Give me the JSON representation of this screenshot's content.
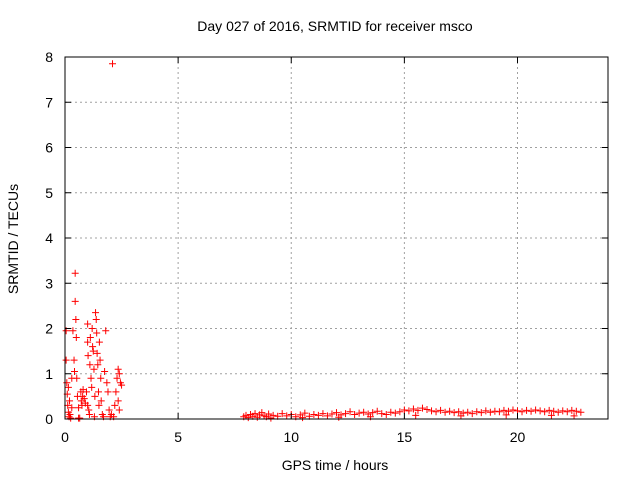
{
  "chart_data": {
    "type": "scatter",
    "title": "Day 027 of 2016, SRMTID for receiver msco",
    "xlabel": "GPS time / hours",
    "ylabel": "SRMTID / TECUs",
    "xlim": [
      0,
      24
    ],
    "ylim": [
      0,
      8
    ],
    "xticks": [
      0,
      5,
      10,
      15,
      20
    ],
    "yticks": [
      0,
      1,
      2,
      3,
      4,
      5,
      6,
      7,
      8
    ],
    "grid": true,
    "marker": "+",
    "color": "#ff0000",
    "points": [
      [
        0.05,
        1.95
      ],
      [
        0.05,
        1.3
      ],
      [
        0.08,
        0.8
      ],
      [
        0.1,
        0.55
      ],
      [
        0.12,
        0.3
      ],
      [
        0.15,
        0.15
      ],
      [
        0.18,
        0.05
      ],
      [
        0.2,
        0.4
      ],
      [
        0.22,
        0.1
      ],
      [
        0.25,
        0.02
      ],
      [
        0.3,
        0.25
      ],
      [
        0.35,
        1.95
      ],
      [
        0.4,
        1.3
      ],
      [
        0.42,
        1.05
      ],
      [
        0.45,
        3.22
      ],
      [
        0.45,
        2.6
      ],
      [
        0.48,
        2.2
      ],
      [
        0.5,
        1.8
      ],
      [
        0.52,
        0.9
      ],
      [
        0.55,
        0.5
      ],
      [
        0.6,
        0.02
      ],
      [
        0.65,
        0.02
      ],
      [
        0.7,
        0.6
      ],
      [
        0.72,
        0.4
      ],
      [
        0.75,
        0.3
      ],
      [
        0.78,
        0.5
      ],
      [
        0.8,
        0.65
      ],
      [
        0.85,
        0.45
      ],
      [
        0.9,
        0.35
      ],
      [
        0.95,
        0.6
      ],
      [
        1.0,
        2.1
      ],
      [
        1.0,
        1.7
      ],
      [
        1.02,
        1.4
      ],
      [
        1.05,
        0.2
      ],
      [
        1.08,
        0.1
      ],
      [
        1.1,
        1.2
      ],
      [
        1.12,
        1.8
      ],
      [
        1.15,
        0.9
      ],
      [
        1.18,
        0.7
      ],
      [
        1.2,
        2.0
      ],
      [
        1.22,
        1.6
      ],
      [
        1.25,
        1.5
      ],
      [
        1.28,
        1.1
      ],
      [
        1.3,
        0.05
      ],
      [
        1.32,
        0.5
      ],
      [
        1.35,
        2.35
      ],
      [
        1.38,
        2.2
      ],
      [
        1.4,
        1.9
      ],
      [
        1.42,
        1.45
      ],
      [
        1.45,
        1.2
      ],
      [
        1.48,
        0.6
      ],
      [
        1.5,
        0.3
      ],
      [
        1.52,
        1.7
      ],
      [
        1.55,
        1.3
      ],
      [
        1.58,
        0.9
      ],
      [
        1.6,
        0.4
      ],
      [
        1.65,
        0.1
      ],
      [
        1.7,
        0.05
      ],
      [
        1.75,
        1.05
      ],
      [
        1.8,
        1.95
      ],
      [
        1.85,
        0.8
      ],
      [
        1.9,
        0.6
      ],
      [
        1.95,
        0.2
      ],
      [
        2.0,
        0.05
      ],
      [
        2.05,
        0.1
      ],
      [
        2.1,
        7.85
      ],
      [
        2.15,
        0.05
      ],
      [
        2.2,
        0.3
      ],
      [
        2.25,
        0.6
      ],
      [
        2.3,
        0.9
      ],
      [
        2.35,
        1.1
      ],
      [
        2.4,
        1.0
      ],
      [
        2.45,
        0.8
      ],
      [
        2.5,
        0.75
      ],
      [
        2.35,
        0.4
      ],
      [
        2.4,
        0.2
      ],
      [
        0.3,
        0.9
      ],
      [
        0.15,
        0.7
      ],
      [
        0.6,
        0.25
      ],
      [
        1.0,
        0.3
      ],
      [
        7.9,
        0.05
      ],
      [
        8.0,
        0.08
      ],
      [
        8.1,
        0.03
      ],
      [
        8.2,
        0.1
      ],
      [
        8.3,
        0.06
      ],
      [
        8.4,
        0.12
      ],
      [
        8.5,
        0.04
      ],
      [
        8.6,
        0.09
      ],
      [
        8.7,
        0.14
      ],
      [
        8.8,
        0.07
      ],
      [
        8.9,
        0.05
      ],
      [
        9.0,
        0.11
      ],
      [
        9.2,
        0.08
      ],
      [
        9.4,
        0.06
      ],
      [
        9.6,
        0.12
      ],
      [
        9.8,
        0.07
      ],
      [
        10.0,
        0.1
      ],
      [
        10.2,
        0.05
      ],
      [
        10.4,
        0.09
      ],
      [
        10.6,
        0.13
      ],
      [
        10.8,
        0.06
      ],
      [
        11.0,
        0.1
      ],
      [
        11.2,
        0.08
      ],
      [
        11.4,
        0.12
      ],
      [
        11.6,
        0.07
      ],
      [
        11.8,
        0.11
      ],
      [
        12.0,
        0.14
      ],
      [
        12.2,
        0.09
      ],
      [
        12.4,
        0.12
      ],
      [
        12.6,
        0.16
      ],
      [
        12.8,
        0.1
      ],
      [
        13.0,
        0.13
      ],
      [
        13.2,
        0.15
      ],
      [
        13.4,
        0.11
      ],
      [
        13.6,
        0.14
      ],
      [
        13.8,
        0.17
      ],
      [
        14.0,
        0.12
      ],
      [
        14.2,
        0.1
      ],
      [
        14.4,
        0.15
      ],
      [
        14.6,
        0.13
      ],
      [
        14.8,
        0.16
      ],
      [
        15.0,
        0.2
      ],
      [
        15.2,
        0.18
      ],
      [
        15.4,
        0.22
      ],
      [
        15.6,
        0.19
      ],
      [
        15.8,
        0.24
      ],
      [
        16.0,
        0.21
      ],
      [
        16.2,
        0.18
      ],
      [
        16.4,
        0.16
      ],
      [
        16.6,
        0.19
      ],
      [
        16.8,
        0.15
      ],
      [
        17.0,
        0.17
      ],
      [
        17.2,
        0.14
      ],
      [
        17.4,
        0.16
      ],
      [
        17.6,
        0.13
      ],
      [
        17.8,
        0.15
      ],
      [
        18.0,
        0.12
      ],
      [
        18.2,
        0.16
      ],
      [
        18.4,
        0.14
      ],
      [
        18.6,
        0.18
      ],
      [
        18.8,
        0.15
      ],
      [
        19.0,
        0.17
      ],
      [
        19.2,
        0.16
      ],
      [
        19.4,
        0.19
      ],
      [
        19.6,
        0.17
      ],
      [
        19.8,
        0.2
      ],
      [
        20.0,
        0.18
      ],
      [
        20.2,
        0.16
      ],
      [
        20.4,
        0.19
      ],
      [
        20.6,
        0.17
      ],
      [
        20.8,
        0.2
      ],
      [
        21.0,
        0.18
      ],
      [
        21.2,
        0.16
      ],
      [
        21.4,
        0.19
      ],
      [
        21.6,
        0.17
      ],
      [
        21.8,
        0.15
      ],
      [
        22.0,
        0.18
      ],
      [
        22.2,
        0.16
      ],
      [
        22.4,
        0.19
      ],
      [
        22.6,
        0.17
      ],
      [
        22.8,
        0.15
      ],
      [
        9.1,
        0.02
      ],
      [
        10.5,
        0.03
      ],
      [
        12.1,
        0.04
      ],
      [
        13.5,
        0.05
      ],
      [
        15.5,
        0.08
      ],
      [
        17.5,
        0.07
      ],
      [
        19.5,
        0.09
      ],
      [
        21.5,
        0.08
      ],
      [
        22.5,
        0.07
      ]
    ]
  }
}
